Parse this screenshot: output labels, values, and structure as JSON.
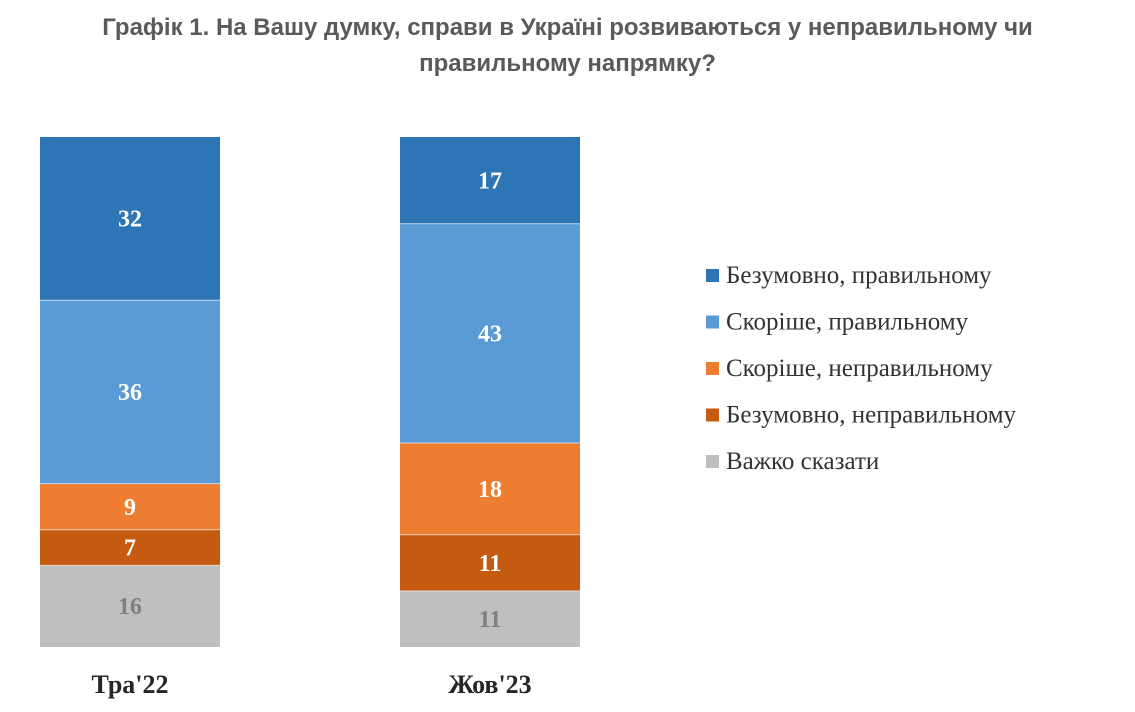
{
  "chart_data": {
    "type": "bar",
    "stacked": true,
    "title_lines": [
      "Графік 1. На Вашу думку, справи в Україні розвиваються у неправильному чи",
      "правильному напрямку?"
    ],
    "categories": [
      "Тра'22",
      "Жов'23"
    ],
    "series": [
      {
        "name": "Безумовно, правильному",
        "color": "#2e75b6",
        "label_color": "#ffffff",
        "values": [
          32,
          17
        ]
      },
      {
        "name": "Скоріше, правильному",
        "color": "#5b9bd5",
        "label_color": "#ffffff",
        "values": [
          36,
          43
        ]
      },
      {
        "name": "Скоріше, неправильному",
        "color": "#ed7d31",
        "label_color": "#ffffff",
        "values": [
          9,
          18
        ]
      },
      {
        "name": "Безумовно, неправильному",
        "color": "#c55a11",
        "label_color": "#ffffff",
        "values": [
          7,
          11
        ]
      },
      {
        "name": "Важко сказати",
        "color": "#bfbfbf",
        "label_color": "#7f7f7f",
        "values": [
          16,
          11
        ]
      }
    ],
    "legend_position": "right",
    "grid": false,
    "ylim": [
      0,
      100
    ]
  }
}
